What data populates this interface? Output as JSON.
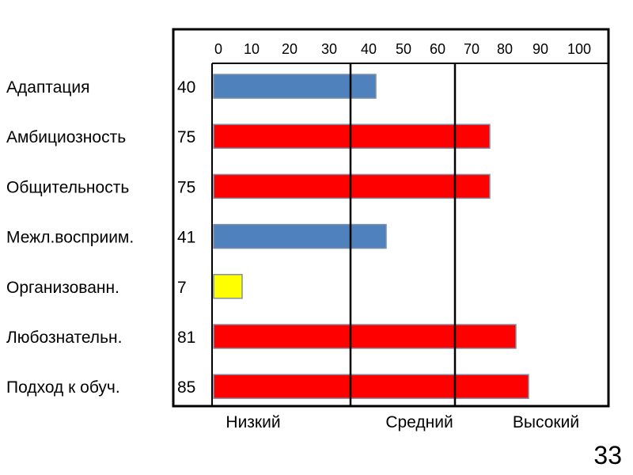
{
  "slide_number": "33",
  "colors": {
    "low": "#4f81bd",
    "medium": "#ff0000",
    "high": "#ffff00",
    "bar_border": "#7f8fa6",
    "frame": "#000000"
  },
  "chart_data": {
    "type": "bar",
    "orientation": "horizontal",
    "categories": [
      "Адаптация",
      "Амбициозность",
      "Общительность",
      "Межл.восприим.",
      "Организованн.",
      "Любознательн.",
      "Подход к обуч."
    ],
    "values": [
      40,
      75,
      75,
      41,
      7,
      81,
      85
    ],
    "value_labels": [
      "40",
      "75",
      "75",
      "41",
      "7",
      "81",
      "85"
    ],
    "bar_colors": [
      "#4f81bd",
      "#ff0000",
      "#ff0000",
      "#4f81bd",
      "#ffff00",
      "#ff0000",
      "#ff0000"
    ],
    "xlim": [
      0,
      100
    ],
    "x_ticks": [
      0,
      10,
      20,
      30,
      40,
      50,
      60,
      70,
      80,
      90,
      100
    ],
    "x_tick_labels": [
      "0",
      "10",
      "20",
      "30",
      "40",
      "50",
      "60",
      "70",
      "80",
      "90",
      "100"
    ],
    "zone_boundaries": [
      35,
      65
    ],
    "zone_labels": [
      "Низкий",
      "Средний",
      "Высокий"
    ],
    "axis_position": "top",
    "grid": false,
    "legend": "none"
  }
}
